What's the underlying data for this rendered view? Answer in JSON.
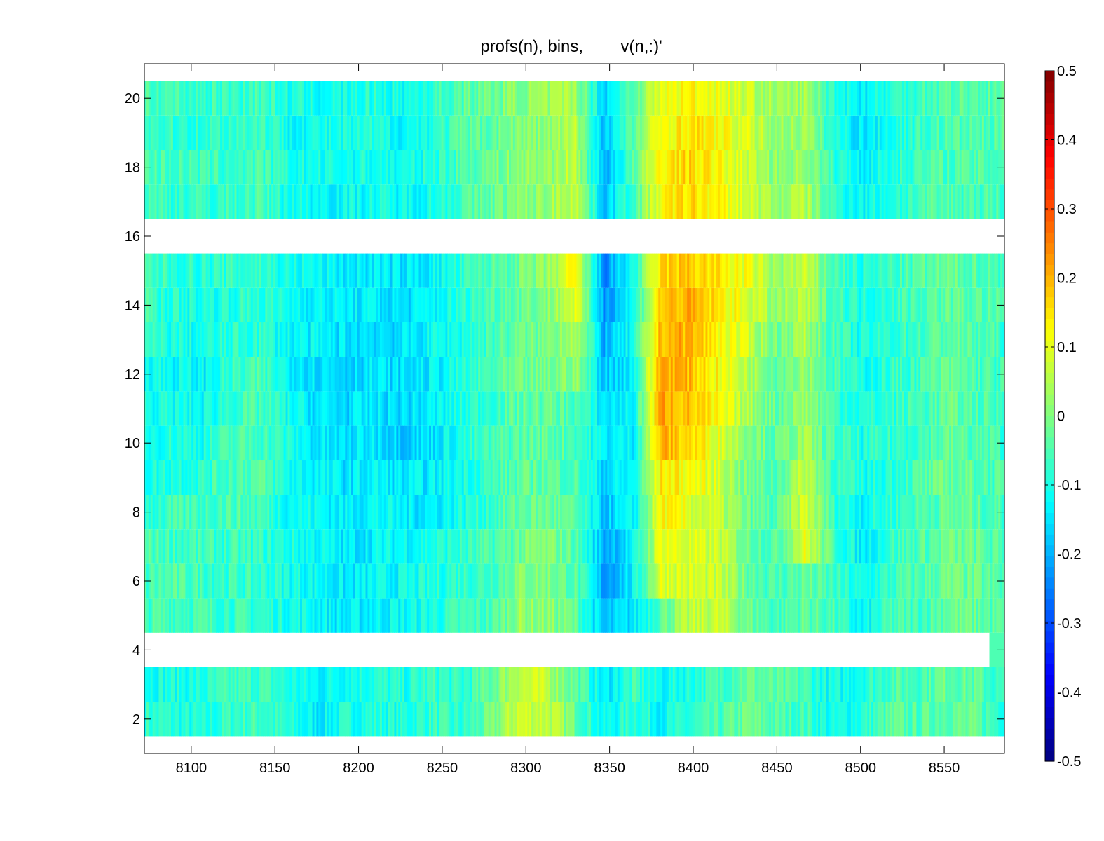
{
  "chart_data": {
    "type": "heatmap",
    "title": "profs(n), bins,        v(n,:)'",
    "xlabel": "",
    "ylabel": "",
    "xlim": [
      8072,
      8586
    ],
    "ylim": [
      1,
      21
    ],
    "x_ticks": [
      8100,
      8150,
      8200,
      8250,
      8300,
      8350,
      8400,
      8450,
      8500,
      8550
    ],
    "x_tick_labels": [
      "8100",
      "8150",
      "8200",
      "8250",
      "8300",
      "8350",
      "8400",
      "8450",
      "8500",
      "8550"
    ],
    "y_ticks": [
      2,
      4,
      6,
      8,
      10,
      12,
      14,
      16,
      18,
      20
    ],
    "y_tick_labels": [
      "2",
      "4",
      "6",
      "8",
      "10",
      "12",
      "14",
      "16",
      "18",
      "20"
    ],
    "colorbar": {
      "colormap": "jet",
      "range": [
        -0.5,
        0.5
      ],
      "ticks": [
        0.5,
        0.4,
        0.3,
        0.2,
        0.1,
        0,
        -0.1,
        -0.2,
        -0.3,
        -0.4,
        -0.5
      ],
      "tick_labels": [
        "0.5",
        "0.4",
        "0.3",
        "0.2",
        "0.1",
        "0",
        "-0.1",
        "-0.2",
        "-0.3",
        "-0.4",
        "-0.5"
      ]
    },
    "rows": [
      2,
      3,
      5,
      6,
      7,
      8,
      9,
      10,
      11,
      12,
      13,
      14,
      15,
      17,
      18,
      19,
      20
    ],
    "missing_rows": [
      1,
      4,
      16,
      21
    ],
    "row_values": {
      "2": [
        -0.08,
        -0.09,
        -0.11,
        -0.07,
        -0.06,
        -0.1,
        -0.14,
        -0.1,
        -0.09,
        -0.1,
        -0.07,
        -0.09,
        -0.03,
        0.08,
        0.07,
        -0.02,
        -0.13,
        -0.07,
        -0.12,
        -0.09,
        -0.06,
        -0.02,
        -0.05,
        -0.06,
        -0.12,
        -0.09,
        -0.04,
        -0.05,
        -0.02,
        -0.04,
        -0.08
      ],
      "3": [
        -0.1,
        -0.1,
        -0.1,
        -0.07,
        -0.06,
        -0.1,
        -0.13,
        -0.1,
        -0.09,
        -0.1,
        -0.07,
        -0.09,
        -0.03,
        0.07,
        0.06,
        -0.03,
        -0.15,
        -0.07,
        -0.12,
        -0.09,
        -0.06,
        -0.02,
        -0.05,
        -0.06,
        -0.12,
        -0.09,
        -0.05,
        -0.05,
        -0.02,
        -0.04,
        -0.09
      ],
      "5": [
        -0.06,
        -0.05,
        -0.06,
        -0.07,
        -0.08,
        -0.1,
        -0.12,
        -0.15,
        -0.13,
        -0.12,
        -0.1,
        -0.07,
        -0.06,
        0.02,
        0.01,
        -0.03,
        -0.2,
        -0.15,
        -0.03,
        0.05,
        0.07,
        -0.02,
        -0.06,
        -0.03,
        -0.06,
        -0.14,
        -0.06,
        -0.06,
        -0.02,
        -0.03,
        -0.05
      ],
      "6": [
        -0.06,
        -0.05,
        -0.06,
        -0.07,
        -0.08,
        -0.1,
        -0.12,
        -0.15,
        -0.13,
        -0.12,
        -0.1,
        -0.07,
        -0.06,
        0.0,
        0.0,
        -0.04,
        -0.22,
        -0.14,
        0.1,
        0.08,
        0.06,
        -0.02,
        -0.06,
        -0.03,
        -0.07,
        -0.12,
        -0.07,
        -0.05,
        -0.02,
        -0.03,
        -0.06
      ],
      "7": [
        -0.05,
        -0.06,
        -0.07,
        -0.07,
        -0.08,
        -0.1,
        -0.12,
        -0.15,
        -0.13,
        -0.12,
        -0.1,
        -0.08,
        -0.06,
        -0.02,
        0.0,
        -0.04,
        -0.2,
        -0.14,
        0.12,
        0.08,
        0.07,
        -0.02,
        -0.05,
        0.1,
        -0.06,
        -0.14,
        -0.07,
        -0.05,
        -0.02,
        -0.03,
        -0.06
      ],
      "8": [
        -0.08,
        -0.07,
        -0.06,
        -0.05,
        -0.06,
        -0.11,
        -0.12,
        -0.14,
        -0.12,
        -0.14,
        -0.14,
        -0.1,
        -0.07,
        -0.03,
        -0.02,
        -0.05,
        -0.18,
        -0.14,
        0.13,
        0.09,
        0.06,
        -0.02,
        -0.06,
        0.09,
        -0.07,
        -0.12,
        -0.08,
        -0.05,
        -0.03,
        -0.04,
        -0.06
      ],
      "9": [
        -0.1,
        -0.09,
        -0.08,
        -0.05,
        -0.04,
        -0.11,
        -0.13,
        -0.15,
        -0.13,
        -0.15,
        -0.14,
        -0.1,
        -0.07,
        -0.04,
        -0.03,
        -0.05,
        -0.16,
        -0.13,
        0.14,
        0.12,
        0.08,
        -0.02,
        -0.05,
        0.07,
        -0.06,
        -0.11,
        -0.08,
        -0.05,
        -0.02,
        -0.04,
        -0.06
      ],
      "10": [
        -0.1,
        -0.09,
        -0.1,
        -0.06,
        -0.05,
        -0.1,
        -0.15,
        -0.16,
        -0.14,
        -0.17,
        -0.15,
        -0.1,
        -0.07,
        -0.04,
        -0.03,
        -0.05,
        -0.14,
        -0.13,
        0.2,
        0.16,
        0.1,
        0.02,
        -0.04,
        0.03,
        -0.06,
        -0.1,
        -0.08,
        -0.06,
        -0.03,
        -0.05,
        -0.07
      ],
      "11": [
        -0.1,
        -0.11,
        -0.12,
        -0.07,
        -0.06,
        -0.11,
        -0.15,
        -0.16,
        -0.15,
        -0.16,
        -0.14,
        -0.1,
        -0.07,
        -0.04,
        -0.03,
        -0.05,
        -0.15,
        -0.13,
        0.22,
        0.18,
        0.11,
        0.04,
        -0.03,
        0.03,
        -0.06,
        -0.1,
        -0.08,
        -0.06,
        -0.03,
        -0.05,
        -0.07
      ],
      "12": [
        -0.1,
        -0.12,
        -0.13,
        -0.08,
        -0.06,
        -0.12,
        -0.15,
        -0.16,
        -0.15,
        -0.16,
        -0.14,
        -0.1,
        -0.06,
        -0.03,
        -0.02,
        0.02,
        -0.18,
        -0.13,
        0.22,
        0.19,
        0.12,
        0.05,
        -0.02,
        0.03,
        -0.06,
        -0.11,
        -0.08,
        -0.06,
        -0.03,
        -0.05,
        -0.07
      ],
      "13": [
        -0.08,
        -0.1,
        -0.11,
        -0.09,
        -0.08,
        -0.12,
        -0.14,
        -0.15,
        -0.15,
        -0.16,
        -0.12,
        -0.1,
        -0.06,
        -0.03,
        -0.01,
        0.06,
        -0.2,
        -0.12,
        0.2,
        0.2,
        0.13,
        0.07,
        -0.01,
        0.04,
        -0.06,
        -0.11,
        -0.08,
        -0.06,
        -0.03,
        -0.05,
        -0.07
      ],
      "14": [
        -0.07,
        -0.09,
        -0.1,
        -0.09,
        -0.08,
        -0.11,
        -0.13,
        -0.14,
        -0.14,
        -0.16,
        -0.13,
        -0.09,
        -0.05,
        -0.02,
        0.0,
        0.1,
        -0.22,
        -0.12,
        0.18,
        0.2,
        0.14,
        0.09,
        0.01,
        0.05,
        -0.05,
        -0.1,
        -0.07,
        -0.05,
        -0.03,
        -0.04,
        -0.06
      ],
      "15": [
        -0.06,
        -0.08,
        -0.09,
        -0.08,
        -0.07,
        -0.11,
        -0.12,
        -0.14,
        -0.14,
        -0.15,
        -0.13,
        -0.09,
        -0.05,
        -0.02,
        0.01,
        0.12,
        -0.24,
        -0.11,
        0.16,
        0.18,
        0.14,
        0.1,
        0.02,
        0.06,
        -0.05,
        -0.1,
        -0.07,
        -0.05,
        -0.03,
        -0.04,
        -0.06
      ],
      "17": [
        -0.06,
        -0.07,
        -0.08,
        -0.07,
        -0.06,
        -0.1,
        -0.12,
        -0.12,
        -0.11,
        -0.12,
        -0.1,
        -0.06,
        -0.03,
        0.0,
        0.02,
        0.08,
        -0.18,
        -0.06,
        0.12,
        0.16,
        0.12,
        0.08,
        0.02,
        0.05,
        -0.08,
        -0.12,
        -0.09,
        -0.06,
        -0.05,
        -0.05,
        -0.06
      ],
      "18": [
        -0.05,
        -0.06,
        -0.07,
        -0.07,
        -0.06,
        -0.1,
        -0.11,
        -0.11,
        -0.1,
        -0.12,
        -0.09,
        -0.05,
        -0.02,
        0.01,
        0.02,
        0.06,
        -0.2,
        -0.05,
        0.14,
        0.16,
        0.12,
        0.07,
        0.01,
        0.03,
        -0.08,
        -0.13,
        -0.09,
        -0.06,
        -0.05,
        -0.05,
        -0.05
      ],
      "19": [
        -0.06,
        -0.08,
        -0.08,
        -0.07,
        -0.06,
        -0.11,
        -0.11,
        -0.11,
        -0.1,
        -0.12,
        -0.09,
        -0.05,
        -0.03,
        0.0,
        0.01,
        0.05,
        -0.18,
        -0.04,
        0.12,
        0.15,
        0.12,
        0.08,
        0.02,
        0.03,
        -0.09,
        -0.15,
        -0.1,
        -0.07,
        -0.05,
        -0.05,
        -0.05
      ],
      "20": [
        -0.04,
        -0.06,
        -0.07,
        -0.07,
        -0.06,
        -0.1,
        -0.11,
        -0.11,
        -0.09,
        -0.11,
        -0.08,
        -0.04,
        -0.02,
        0.01,
        0.02,
        0.04,
        -0.16,
        -0.03,
        0.1,
        0.13,
        0.11,
        0.07,
        0.02,
        0.03,
        -0.08,
        -0.13,
        -0.09,
        -0.06,
        -0.04,
        -0.04,
        -0.05
      ]
    },
    "row_x_extent": {
      "3": [
        8072,
        8586
      ],
      "4": [
        8577,
        8586
      ]
    },
    "grid": false,
    "legend": "colorbar-right"
  }
}
